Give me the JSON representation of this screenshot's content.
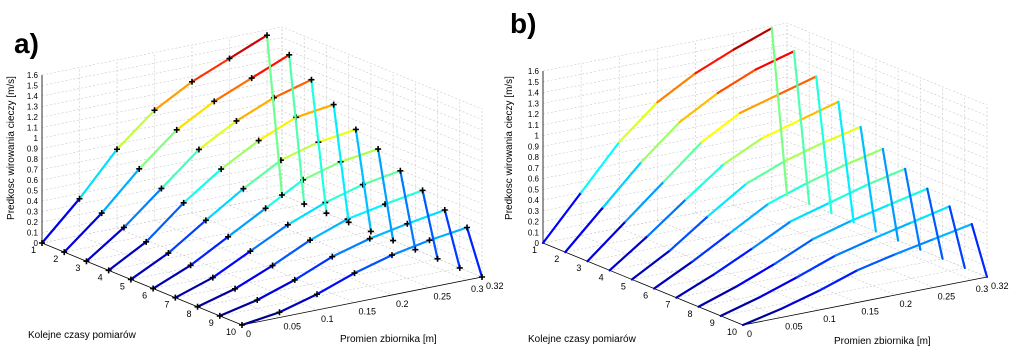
{
  "panels": [
    {
      "label": "a)"
    },
    {
      "label": "b)"
    }
  ],
  "chart_data": [
    {
      "type": "line3d",
      "panel": "a)",
      "title": "",
      "xlabel": "Kolejne czasy pomiarów",
      "ylabel": "Promien zbiornika [m]",
      "zlabel": "Predkosc wirowania cieczy [m/s]",
      "x_ticks": [
        "1",
        "2",
        "3",
        "4",
        "5",
        "6",
        "7",
        "8",
        "9",
        "10"
      ],
      "y_ticks": [
        "0",
        "0.05",
        "0.1",
        "0.15",
        "0.2",
        "0.25",
        "0.3",
        "0.32"
      ],
      "z_ticks": [
        "0",
        "0.1",
        "0.2",
        "0.3",
        "0.4",
        "0.5",
        "0.6",
        "0.7",
        "0.8",
        "0.9",
        "1",
        "1.1",
        "1.2",
        "1.3",
        "1.4",
        "1.5",
        "1.6"
      ],
      "zlim": [
        0,
        1.6
      ],
      "grid": true,
      "markers": true,
      "radii": [
        0,
        0.05,
        0.1,
        0.15,
        0.2,
        0.25,
        0.3,
        0.32
      ],
      "series": [
        {
          "x": 1,
          "values": [
            0,
            0.35,
            0.75,
            1.05,
            1.25,
            1.4,
            1.55,
            0
          ]
        },
        {
          "x": 2,
          "values": [
            0,
            0.3,
            0.65,
            0.95,
            1.15,
            1.3,
            1.45,
            0
          ]
        },
        {
          "x": 3,
          "values": [
            0,
            0.25,
            0.55,
            0.85,
            1.05,
            1.2,
            1.3,
            0
          ]
        },
        {
          "x": 4,
          "values": [
            0,
            0.2,
            0.5,
            0.75,
            0.95,
            1.1,
            1.15,
            0
          ]
        },
        {
          "x": 5,
          "values": [
            0,
            0.18,
            0.42,
            0.65,
            0.85,
            0.95,
            1.0,
            0
          ]
        },
        {
          "x": 6,
          "values": [
            0,
            0.15,
            0.35,
            0.55,
            0.75,
            0.85,
            0.9,
            0
          ]
        },
        {
          "x": 7,
          "values": [
            0,
            0.12,
            0.3,
            0.48,
            0.62,
            0.72,
            0.78,
            0
          ]
        },
        {
          "x": 8,
          "values": [
            0,
            0.1,
            0.25,
            0.42,
            0.55,
            0.62,
            0.68,
            0
          ]
        },
        {
          "x": 9,
          "values": [
            0,
            0.08,
            0.2,
            0.35,
            0.45,
            0.52,
            0.58,
            0
          ]
        },
        {
          "x": 10,
          "values": [
            0,
            0.05,
            0.15,
            0.28,
            0.38,
            0.45,
            0.5,
            0
          ]
        }
      ]
    },
    {
      "type": "line3d",
      "panel": "b)",
      "title": "",
      "xlabel": "Kolejne czasy pomiarów",
      "ylabel": "Promien zbiornika [m]",
      "zlabel": "Predkosc wirowania cieczy [m/s]",
      "x_ticks": [
        "1",
        "2",
        "3",
        "4",
        "5",
        "6",
        "7",
        "8",
        "9",
        "10"
      ],
      "y_ticks": [
        "0",
        "0.05",
        "0.1",
        "0.15",
        "0.2",
        "0.25",
        "0.3",
        "0.32"
      ],
      "z_ticks": [
        "0",
        "0.1",
        "0.2",
        "0.3",
        "0.4",
        "0.5",
        "0.6",
        "0.7",
        "0.8",
        "0.9",
        "1",
        "1.1",
        "1.2",
        "1.3",
        "1.4",
        "1.5",
        "1.6"
      ],
      "zlim": [
        0,
        1.6
      ],
      "grid": true,
      "markers": false,
      "radii": [
        0,
        0.05,
        0.1,
        0.15,
        0.2,
        0.25,
        0.3,
        0.32
      ],
      "series": [
        {
          "x": 1,
          "values": [
            0,
            0.4,
            0.8,
            1.1,
            1.3,
            1.45,
            1.58,
            0
          ]
        },
        {
          "x": 2,
          "values": [
            0,
            0.35,
            0.7,
            1.0,
            1.2,
            1.35,
            1.45,
            0
          ]
        },
        {
          "x": 3,
          "values": [
            0,
            0.3,
            0.6,
            0.9,
            1.1,
            1.2,
            1.3,
            0
          ]
        },
        {
          "x": 4,
          "values": [
            0,
            0.25,
            0.52,
            0.78,
            0.95,
            1.05,
            1.15,
            0
          ]
        },
        {
          "x": 5,
          "values": [
            0,
            0.2,
            0.45,
            0.68,
            0.82,
            0.92,
            1.0,
            0
          ]
        },
        {
          "x": 6,
          "values": [
            0,
            0.18,
            0.38,
            0.58,
            0.7,
            0.8,
            0.88,
            0
          ]
        },
        {
          "x": 7,
          "values": [
            0,
            0.15,
            0.32,
            0.5,
            0.6,
            0.7,
            0.78,
            0
          ]
        },
        {
          "x": 8,
          "values": [
            0,
            0.12,
            0.26,
            0.42,
            0.52,
            0.6,
            0.68,
            0
          ]
        },
        {
          "x": 9,
          "values": [
            0,
            0.1,
            0.22,
            0.35,
            0.44,
            0.52,
            0.6,
            0
          ]
        },
        {
          "x": 10,
          "values": [
            0,
            0.08,
            0.18,
            0.3,
            0.38,
            0.45,
            0.52,
            0
          ]
        }
      ]
    }
  ]
}
